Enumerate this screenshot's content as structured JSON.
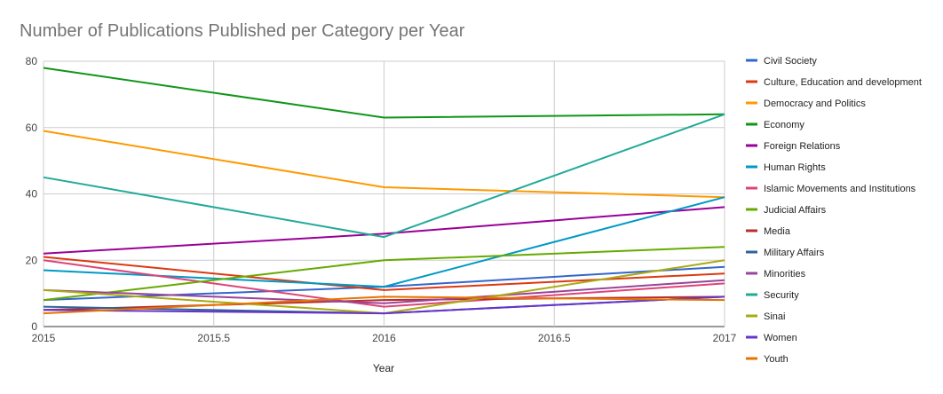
{
  "chart_data": {
    "type": "line",
    "title": "Number of Publications Published per Category per Year",
    "xlabel": "Year",
    "ylabel": "",
    "x": [
      2015,
      2016,
      2017
    ],
    "xlim": [
      2015,
      2017
    ],
    "ylim": [
      0,
      80
    ],
    "xticks": [
      "2015",
      "2015.5",
      "2016",
      "2016.5",
      "2017"
    ],
    "yticks": [
      "0",
      "20",
      "40",
      "60",
      "80"
    ],
    "grid": true,
    "legend_position": "right",
    "series": [
      {
        "name": "Civil Society",
        "color": "#3366CC",
        "values": [
          8,
          12,
          18
        ]
      },
      {
        "name": "Culture, Education and development",
        "color": "#DC3912",
        "values": [
          21,
          11,
          16
        ]
      },
      {
        "name": "Democracy and Politics",
        "color": "#FF9900",
        "values": [
          59,
          42,
          39
        ]
      },
      {
        "name": "Economy",
        "color": "#109618",
        "values": [
          78,
          63,
          64
        ]
      },
      {
        "name": "Foreign Relations",
        "color": "#990099",
        "values": [
          22,
          28,
          36
        ]
      },
      {
        "name": "Human Rights",
        "color": "#0099C6",
        "values": [
          17,
          12,
          39
        ]
      },
      {
        "name": "Islamic Movements and Institutions",
        "color": "#DD4477",
        "values": [
          20,
          6,
          13
        ]
      },
      {
        "name": "Judicial Affairs",
        "color": "#66AA00",
        "values": [
          8,
          20,
          24
        ]
      },
      {
        "name": "Media",
        "color": "#B82E2E",
        "values": [
          5,
          8,
          9
        ]
      },
      {
        "name": "Military Affairs",
        "color": "#316395",
        "values": [
          6,
          4,
          9
        ]
      },
      {
        "name": "Minorities",
        "color": "#994499",
        "values": [
          11,
          7,
          14
        ]
      },
      {
        "name": "Security",
        "color": "#22AA99",
        "values": [
          45,
          27,
          64
        ]
      },
      {
        "name": "Sinai",
        "color": "#AAAA11",
        "values": [
          11,
          4,
          20
        ]
      },
      {
        "name": "Women",
        "color": "#6633CC",
        "values": [
          5,
          4,
          9
        ]
      },
      {
        "name": "Youth",
        "color": "#E67300",
        "values": [
          4,
          9,
          8
        ]
      }
    ]
  }
}
